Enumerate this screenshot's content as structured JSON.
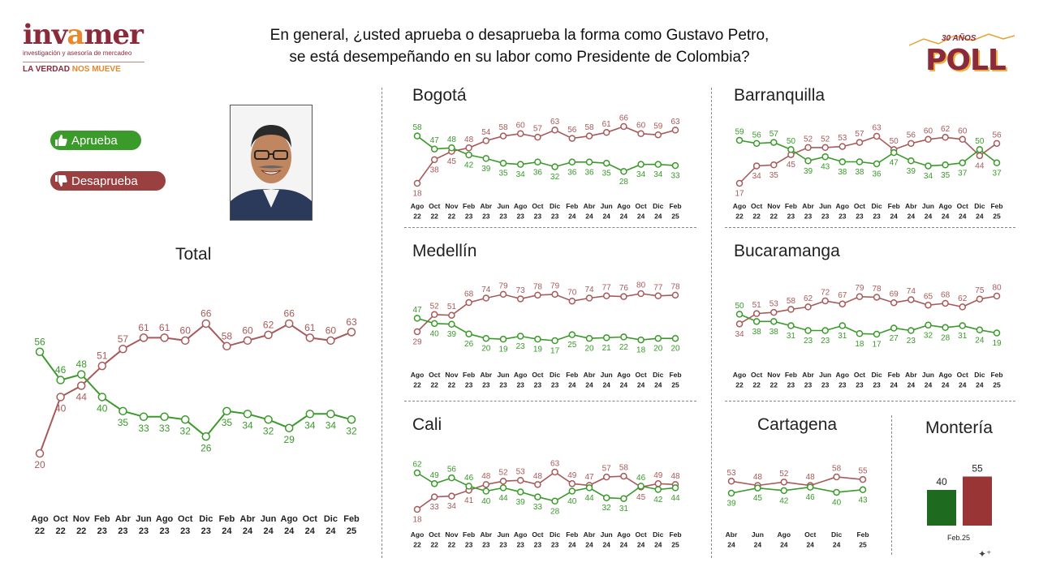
{
  "header": {
    "question_line1": "En general, ¿usted aprueba o desaprueba la forma como Gustavo Petro,",
    "question_line2": "se está desempeñando en su labor como Presidente de Colombia?",
    "logo_brand_pre": "inv",
    "logo_brand_star": "a",
    "logo_brand_post": "mer",
    "logo_subtitle": "investigación y asesoría de mercadeo",
    "logo_slogan_a": "LA VERDAD ",
    "logo_slogan_b": "NOS MUEVE",
    "poll_years": "30 AÑOS",
    "poll_word": "POLL"
  },
  "legend": {
    "approve": "Aprueba",
    "disapprove": "Desaprueba"
  },
  "colors": {
    "approve": "#3a9a2a",
    "disapprove": "#a85a5a",
    "bar_approve": "#1e6b20",
    "bar_disapprove": "#9a3535"
  },
  "chart_data": [
    {
      "id": "total",
      "type": "line",
      "title": "Total",
      "x": [
        "Ago 22",
        "Oct 22",
        "Nov 22",
        "Feb 23",
        "Abr 23",
        "Jun 23",
        "Ago 23",
        "Oct 23",
        "Dic 23",
        "Feb 24",
        "Abr 24",
        "Jun 24",
        "Ago 24",
        "Oct 24",
        "Dic 24",
        "Feb 25"
      ],
      "series": [
        {
          "name": "Aprueba",
          "values": [
            56,
            46,
            48,
            40,
            35,
            33,
            33,
            32,
            26,
            35,
            34,
            32,
            29,
            34,
            34,
            32
          ]
        },
        {
          "name": "Desaprueba",
          "values": [
            20,
            40,
            44,
            51,
            57,
            61,
            61,
            60,
            66,
            58,
            60,
            62,
            66,
            61,
            60,
            63
          ]
        }
      ]
    },
    {
      "id": "bogota",
      "type": "line",
      "title": "Bogotá",
      "x": [
        "Ago 22",
        "Oct 22",
        "Nov 22",
        "Feb 23",
        "Abr 23",
        "Jun 23",
        "Ago 23",
        "Oct 23",
        "Dic 23",
        "Feb 24",
        "Abr 24",
        "Jun 24",
        "Ago 24",
        "Oct 24",
        "Dic 24",
        "Feb 25"
      ],
      "series": [
        {
          "name": "Aprueba",
          "values": [
            58,
            47,
            48,
            42,
            39,
            35,
            34,
            36,
            32,
            36,
            36,
            35,
            28,
            34,
            34,
            33
          ]
        },
        {
          "name": "Desaprueba",
          "values": [
            18,
            38,
            45,
            48,
            54,
            58,
            60,
            57,
            63,
            56,
            58,
            61,
            66,
            60,
            59,
            63
          ]
        }
      ]
    },
    {
      "id": "barranquilla",
      "type": "line",
      "title": "Barranquilla",
      "x": [
        "Ago 22",
        "Oct 22",
        "Nov 22",
        "Feb 23",
        "Abr 23",
        "Jun 23",
        "Ago 23",
        "Oct 23",
        "Dic 23",
        "Feb 24",
        "Abr 24",
        "Jun 24",
        "Ago 24",
        "Oct 24",
        "Dic 24",
        "Feb 25"
      ],
      "series": [
        {
          "name": "Aprueba",
          "values": [
            59,
            56,
            57,
            50,
            39,
            43,
            38,
            38,
            36,
            47,
            39,
            34,
            35,
            37,
            50,
            37
          ]
        },
        {
          "name": "Desaprueba",
          "values": [
            17,
            34,
            35,
            45,
            52,
            52,
            53,
            57,
            63,
            50,
            56,
            60,
            62,
            60,
            44,
            56
          ]
        }
      ]
    },
    {
      "id": "medellin",
      "type": "line",
      "title": "Medellín",
      "x": [
        "Ago 22",
        "Oct 22",
        "Nov 22",
        "Feb 23",
        "Abr 23",
        "Jun 23",
        "Ago 23",
        "Oct 23",
        "Dic 23",
        "Feb 24",
        "Abr 24",
        "Jun 24",
        "Ago 24",
        "Oct 24",
        "Dic 24",
        "Feb 25"
      ],
      "series": [
        {
          "name": "Aprueba",
          "values": [
            47,
            40,
            39,
            26,
            20,
            19,
            23,
            19,
            17,
            25,
            20,
            21,
            22,
            18,
            20,
            20
          ]
        },
        {
          "name": "Desaprueba",
          "values": [
            29,
            52,
            51,
            68,
            74,
            79,
            73,
            78,
            79,
            70,
            74,
            77,
            76,
            80,
            77,
            78
          ]
        }
      ]
    },
    {
      "id": "bucaramanga",
      "type": "line",
      "title": "Bucaramanga",
      "x": [
        "Ago 22",
        "Oct 22",
        "Nov 22",
        "Feb 23",
        "Abr 23",
        "Jun 23",
        "Ago 23",
        "Oct 23",
        "Dic 23",
        "Feb 24",
        "Abr 24",
        "Jun 24",
        "Ago 24",
        "Oct 24",
        "Dic 24",
        "Feb 25"
      ],
      "series": [
        {
          "name": "Aprueba",
          "values": [
            50,
            38,
            38,
            31,
            23,
            23,
            31,
            18,
            17,
            27,
            23,
            32,
            28,
            31,
            24,
            19
          ]
        },
        {
          "name": "Desaprueba",
          "values": [
            34,
            51,
            53,
            58,
            62,
            72,
            67,
            79,
            78,
            69,
            74,
            65,
            68,
            62,
            75,
            80
          ]
        }
      ]
    },
    {
      "id": "cali",
      "type": "line",
      "title": "Cali",
      "x": [
        "Ago 22",
        "Oct 22",
        "Nov 22",
        "Feb 23",
        "Abr 23",
        "Jun 23",
        "Ago 23",
        "Oct 23",
        "Dic 23",
        "Feb 24",
        "Abr 24",
        "Jun 24",
        "Ago 24",
        "Oct 24",
        "Dic 24",
        "Feb 25"
      ],
      "series": [
        {
          "name": "Aprueba",
          "values": [
            62,
            49,
            56,
            46,
            40,
            44,
            39,
            33,
            28,
            40,
            44,
            32,
            31,
            46,
            42,
            44
          ]
        },
        {
          "name": "Desaprueba",
          "values": [
            18,
            33,
            34,
            41,
            48,
            52,
            53,
            48,
            63,
            49,
            47,
            57,
            58,
            45,
            49,
            48
          ]
        }
      ]
    },
    {
      "id": "cartagena",
      "type": "line",
      "title": "Cartagena",
      "x": [
        "Abr 24",
        "Jun 24",
        "Ago 24",
        "Oct 24",
        "Dic 24",
        "Feb 25"
      ],
      "series": [
        {
          "name": "Aprueba",
          "values": [
            39,
            45,
            42,
            46,
            40,
            43
          ]
        },
        {
          "name": "Desaprueba",
          "values": [
            53,
            48,
            52,
            48,
            58,
            55
          ]
        }
      ]
    },
    {
      "id": "monteria",
      "type": "bar",
      "title": "Montería",
      "categories": [
        "Feb.25"
      ],
      "series": [
        {
          "name": "Aprueba",
          "values": [
            40
          ]
        },
        {
          "name": "Desaprueba",
          "values": [
            55
          ]
        }
      ]
    }
  ]
}
